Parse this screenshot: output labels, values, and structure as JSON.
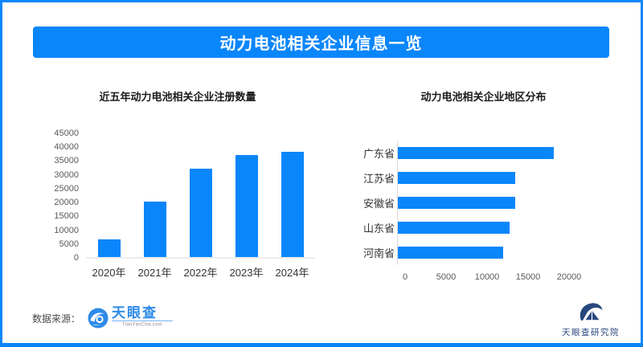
{
  "page": {
    "accent_color": "#0a86fb",
    "background": "#ffffff",
    "border_color": "#0a86fb"
  },
  "header": {
    "title": "动力电池相关企业信息一览",
    "bg_color": "#0a86fb",
    "text_color": "#ffffff"
  },
  "chart_data": [
    {
      "type": "bar",
      "title": "近五年动力电池相关企业注册数量",
      "categories": [
        "2020年",
        "2021年",
        "2022年",
        "2023年",
        "2024年"
      ],
      "values": [
        6500,
        20000,
        32000,
        37000,
        38000
      ],
      "xlabel": "",
      "ylabel": "",
      "ylim": [
        0,
        45000
      ],
      "ytick_step": 5000,
      "bar_color": "#0a86fb",
      "grid": false,
      "legend": "none"
    },
    {
      "type": "bar",
      "orientation": "horizontal",
      "title": "动力电池相关企业地区分布",
      "categories": [
        "广东省",
        "江苏省",
        "安徽省",
        "山东省",
        "河南省"
      ],
      "values": [
        19000,
        14300,
        14300,
        13600,
        12800
      ],
      "xlabel": "",
      "ylabel": "",
      "xlim": [
        0,
        23000
      ],
      "xticks": [
        0,
        5000,
        10000,
        15000,
        20000
      ],
      "bar_color": "#0a86fb",
      "grid": false,
      "legend": "none"
    }
  ],
  "footer": {
    "source_label": "数据来源：",
    "tianyancha_logo_text": "天眼查",
    "tianyancha_logo_sub": "TianYanCha.com",
    "tianyancha_color": "#2e8be8",
    "research_logo_text": "天眼查研究院",
    "research_logo_color": "#27477d",
    "icons": {
      "tianyancha_eye": "blue circle with white eye swoosh",
      "research_institute": "navy swoosh over triangle mark"
    }
  }
}
